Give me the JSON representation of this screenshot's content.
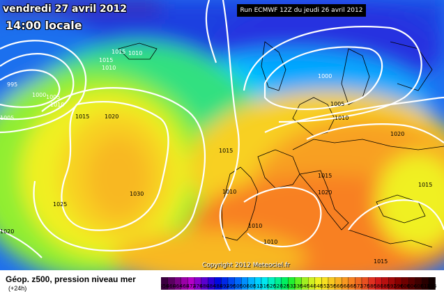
{
  "map": {
    "date_label": "vendredi 27 avril 2012",
    "time_label": "14:00 locale",
    "run_label": "Run ECMWF 12Z du jeudi 26 avril 2012",
    "copyright": "Copyright 2012 Meteociel.fr",
    "isobar_labels": [
      {
        "text": "995",
        "color": "white"
      },
      {
        "text": "1000",
        "color": "white"
      },
      {
        "text": "1005",
        "color": "white"
      },
      {
        "text": "1010",
        "color": "white"
      },
      {
        "text": "1005",
        "color": "white"
      },
      {
        "text": "1015",
        "color": "white"
      },
      {
        "text": "1010",
        "color": "white"
      },
      {
        "text": "1015",
        "color": "white"
      },
      {
        "text": "1010",
        "color": "white"
      },
      {
        "text": "1015",
        "color": "black"
      },
      {
        "text": "1020",
        "color": "black"
      },
      {
        "text": "1030",
        "color": "black"
      },
      {
        "text": "1025",
        "color": "black"
      },
      {
        "text": "1020",
        "color": "black"
      },
      {
        "text": "1015",
        "color": "black"
      },
      {
        "text": "1010",
        "color": "black"
      },
      {
        "text": "1010",
        "color": "black"
      },
      {
        "text": "1010",
        "color": "black"
      },
      {
        "text": "1000",
        "color": "white"
      },
      {
        "text": "1005",
        "color": "black"
      },
      {
        "text": "1010",
        "color": "black"
      },
      {
        "text": "1020",
        "color": "black"
      },
      {
        "text": "1015",
        "color": "black"
      },
      {
        "text": "1020",
        "color": "black"
      },
      {
        "text": "1015",
        "color": "black"
      },
      {
        "text": "1015",
        "color": "black"
      }
    ]
  },
  "footer": {
    "title": "Géop. z500, pression niveau mer",
    "subtitle": "(+24h)"
  },
  "scale": {
    "labels": [
      "456",
      "460",
      "464",
      "468",
      "472",
      "476",
      "480",
      "484",
      "488",
      "492",
      "496",
      "500",
      "504",
      "508",
      "512",
      "516",
      "520",
      "524",
      "528",
      "532",
      "536",
      "540",
      "544",
      "548",
      "552",
      "556",
      "560",
      "564",
      "568",
      "572",
      "576",
      "580",
      "584",
      "588",
      "592",
      "596",
      "600",
      "604",
      "608",
      "612",
      "616"
    ],
    "colors": [
      "#3b0040",
      "#5a0060",
      "#7a0085",
      "#9b00a8",
      "#b400c8",
      "#8800cc",
      "#5a00d0",
      "#2c00d8",
      "#0008e0",
      "#0028e8",
      "#0048f0",
      "#0068f8",
      "#0090ff",
      "#00b4ff",
      "#00d2ff",
      "#00e8f0",
      "#00f0c0",
      "#00f090",
      "#00f060",
      "#20f030",
      "#60f020",
      "#a0f020",
      "#d0f020",
      "#f0f020",
      "#f8e020",
      "#f8c820",
      "#f8b020",
      "#f89820",
      "#f88020",
      "#f06820",
      "#e85020",
      "#e03020",
      "#d01818",
      "#b81010",
      "#a00808",
      "#880000",
      "#700000",
      "#580000",
      "#400000",
      "#280000",
      "#100000"
    ]
  }
}
